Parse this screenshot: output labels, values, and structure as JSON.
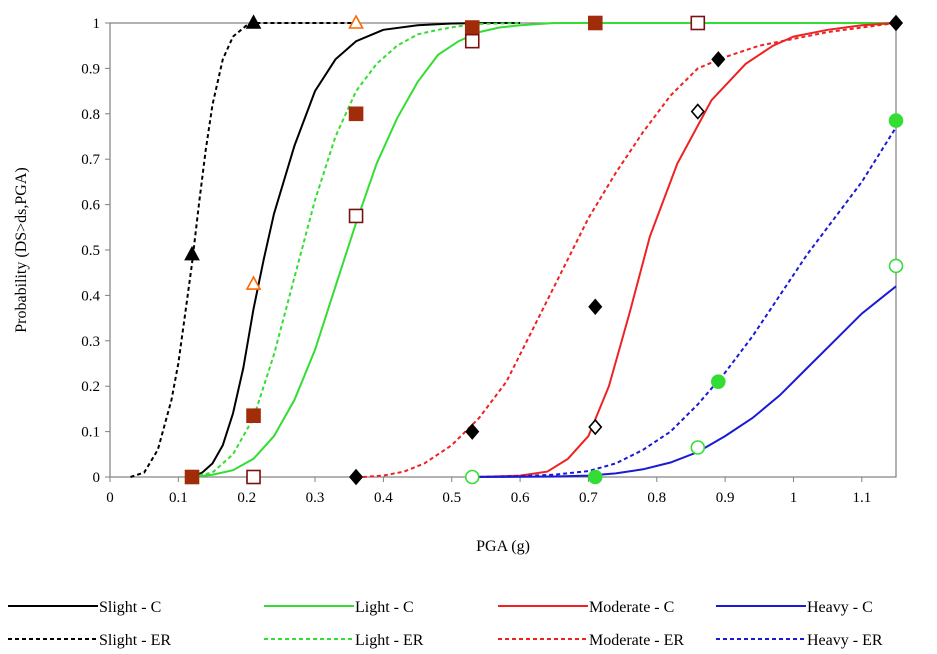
{
  "chart_data": {
    "type": "line",
    "title": "",
    "xlabel": "PGA (g)",
    "ylabel": "Probability (DS>ds,PGA)",
    "xlim": [
      0,
      1.15
    ],
    "ylim": [
      0,
      1
    ],
    "xticks": [
      "0",
      "0.1",
      "0.2",
      "0.3",
      "0.4",
      "0.5",
      "0.6",
      "0.7",
      "0.8",
      "0.9",
      "1",
      "1.1"
    ],
    "yticks": [
      "0",
      "0.1",
      "0.2",
      "0.3",
      "0.4",
      "0.5",
      "0.6",
      "0.7",
      "0.8",
      "0.9",
      "1"
    ],
    "grid": false,
    "legend_position": "bottom",
    "colors": {
      "slight": "#000000",
      "light": "#33dd33",
      "moderate": "#ee2222",
      "heavy": "#1a1ad6",
      "orange": "#ff6600",
      "brown": "#a02c0a",
      "maroon": "#7a1010"
    },
    "series": [
      {
        "name": "Slight - C",
        "style": "solid",
        "color": "#000000",
        "x": [
          0.12,
          0.135,
          0.15,
          0.165,
          0.18,
          0.195,
          0.21,
          0.225,
          0.24,
          0.27,
          0.3,
          0.33,
          0.36,
          0.4,
          0.45,
          0.5,
          0.55,
          0.6
        ],
        "y": [
          0,
          0.01,
          0.03,
          0.07,
          0.14,
          0.24,
          0.37,
          0.48,
          0.58,
          0.73,
          0.85,
          0.92,
          0.96,
          0.985,
          0.995,
          0.999,
          1,
          1
        ]
      },
      {
        "name": "Slight - ER",
        "style": "dashed",
        "color": "#000000",
        "x": [
          0.03,
          0.05,
          0.07,
          0.09,
          0.1,
          0.11,
          0.12,
          0.13,
          0.14,
          0.15,
          0.165,
          0.18,
          0.2,
          0.21,
          0.25,
          0.3,
          0.36
        ],
        "y": [
          0,
          0.01,
          0.06,
          0.17,
          0.25,
          0.36,
          0.47,
          0.6,
          0.72,
          0.82,
          0.92,
          0.97,
          0.995,
          1,
          1,
          1,
          1
        ]
      },
      {
        "name": "Light - C",
        "style": "solid",
        "color": "#33dd33",
        "x": [
          0.12,
          0.15,
          0.18,
          0.21,
          0.24,
          0.27,
          0.3,
          0.33,
          0.36,
          0.39,
          0.42,
          0.45,
          0.48,
          0.51,
          0.54,
          0.57,
          0.6,
          0.65,
          0.7,
          0.8,
          0.9,
          1.0,
          1.15
        ],
        "y": [
          0,
          0.005,
          0.015,
          0.04,
          0.09,
          0.17,
          0.28,
          0.42,
          0.56,
          0.69,
          0.79,
          0.87,
          0.93,
          0.96,
          0.98,
          0.99,
          0.995,
          1,
          1,
          1,
          1,
          1,
          1
        ]
      },
      {
        "name": "Light - ER",
        "style": "dashed",
        "color": "#33dd33",
        "x": [
          0.12,
          0.15,
          0.18,
          0.21,
          0.24,
          0.27,
          0.3,
          0.33,
          0.36,
          0.39,
          0.42,
          0.45,
          0.48,
          0.51,
          0.54,
          0.6
        ],
        "y": [
          0,
          0.01,
          0.05,
          0.13,
          0.27,
          0.44,
          0.61,
          0.75,
          0.85,
          0.91,
          0.95,
          0.975,
          0.985,
          0.993,
          0.998,
          1
        ]
      },
      {
        "name": "Moderate - C",
        "style": "solid",
        "color": "#ee2222",
        "x": [
          0.53,
          0.56,
          0.6,
          0.64,
          0.67,
          0.7,
          0.73,
          0.76,
          0.79,
          0.83,
          0.88,
          0.93,
          0.97,
          1.0,
          1.05,
          1.1,
          1.15
        ],
        "y": [
          0,
          0.001,
          0.003,
          0.012,
          0.04,
          0.09,
          0.2,
          0.36,
          0.53,
          0.69,
          0.83,
          0.91,
          0.95,
          0.97,
          0.985,
          0.995,
          1
        ]
      },
      {
        "name": "Moderate - ER",
        "style": "dashed",
        "color": "#ee2222",
        "x": [
          0.37,
          0.4,
          0.43,
          0.46,
          0.5,
          0.54,
          0.58,
          0.62,
          0.66,
          0.7,
          0.74,
          0.78,
          0.82,
          0.86,
          0.9,
          0.95,
          1.0,
          1.05,
          1.1,
          1.15
        ],
        "y": [
          0,
          0.003,
          0.012,
          0.03,
          0.07,
          0.13,
          0.21,
          0.33,
          0.45,
          0.57,
          0.67,
          0.76,
          0.84,
          0.9,
          0.925,
          0.95,
          0.965,
          0.98,
          0.99,
          1
        ]
      },
      {
        "name": "Heavy - C",
        "style": "solid",
        "color": "#1a1ad6",
        "x": [
          0.53,
          0.6,
          0.65,
          0.7,
          0.74,
          0.78,
          0.82,
          0.86,
          0.9,
          0.94,
          0.98,
          1.02,
          1.06,
          1.1,
          1.15
        ],
        "y": [
          0,
          0.0005,
          0.001,
          0.003,
          0.008,
          0.017,
          0.032,
          0.055,
          0.09,
          0.13,
          0.18,
          0.24,
          0.3,
          0.36,
          0.42
        ]
      },
      {
        "name": "Heavy - ER",
        "style": "dashed",
        "color": "#1a1ad6",
        "x": [
          0.53,
          0.6,
          0.65,
          0.7,
          0.74,
          0.78,
          0.82,
          0.86,
          0.9,
          0.94,
          0.98,
          1.02,
          1.06,
          1.1,
          1.15
        ],
        "y": [
          0,
          0.002,
          0.005,
          0.013,
          0.03,
          0.06,
          0.1,
          0.16,
          0.23,
          0.31,
          0.4,
          0.49,
          0.57,
          0.65,
          0.77
        ]
      }
    ],
    "markers": [
      {
        "shape": "triangle",
        "fill": "#000000",
        "stroke": "#000000",
        "points": [
          [
            0.12,
            0.49
          ],
          [
            0.21,
            1.0
          ]
        ]
      },
      {
        "shape": "triangle",
        "fill": "#ffffff",
        "stroke": "#ff6600",
        "points": [
          [
            0.21,
            0.425
          ],
          [
            0.36,
            1.0
          ]
        ]
      },
      {
        "shape": "square",
        "fill": "#a02c0a",
        "stroke": "#a02c0a",
        "points": [
          [
            0.12,
            0.0
          ],
          [
            0.21,
            0.135
          ],
          [
            0.36,
            0.8
          ],
          [
            0.53,
            0.99
          ],
          [
            0.71,
            1.0
          ]
        ]
      },
      {
        "shape": "square",
        "fill": "#ffffff",
        "stroke": "#7a1010",
        "points": [
          [
            0.21,
            0.0
          ],
          [
            0.36,
            0.575
          ],
          [
            0.53,
            0.96
          ],
          [
            0.86,
            1.0
          ]
        ]
      },
      {
        "shape": "diamond",
        "fill": "#000000",
        "stroke": "#000000",
        "points": [
          [
            0.36,
            0.0
          ],
          [
            0.53,
            0.1
          ],
          [
            0.71,
            0.375
          ],
          [
            0.89,
            0.92
          ],
          [
            1.15,
            1.0
          ]
        ]
      },
      {
        "shape": "diamond",
        "fill": "#ffffff",
        "stroke": "#000000",
        "points": [
          [
            0.71,
            0.11
          ],
          [
            0.86,
            0.805
          ]
        ]
      },
      {
        "shape": "circle",
        "fill": "#33dd33",
        "stroke": "#33dd33",
        "points": [
          [
            0.71,
            0.0
          ],
          [
            0.89,
            0.21
          ],
          [
            1.15,
            0.785
          ]
        ]
      },
      {
        "shape": "circle",
        "fill": "#ffffff",
        "stroke": "#33dd33",
        "points": [
          [
            0.53,
            0.0
          ],
          [
            0.86,
            0.065
          ],
          [
            1.15,
            0.465
          ]
        ]
      }
    ]
  }
}
